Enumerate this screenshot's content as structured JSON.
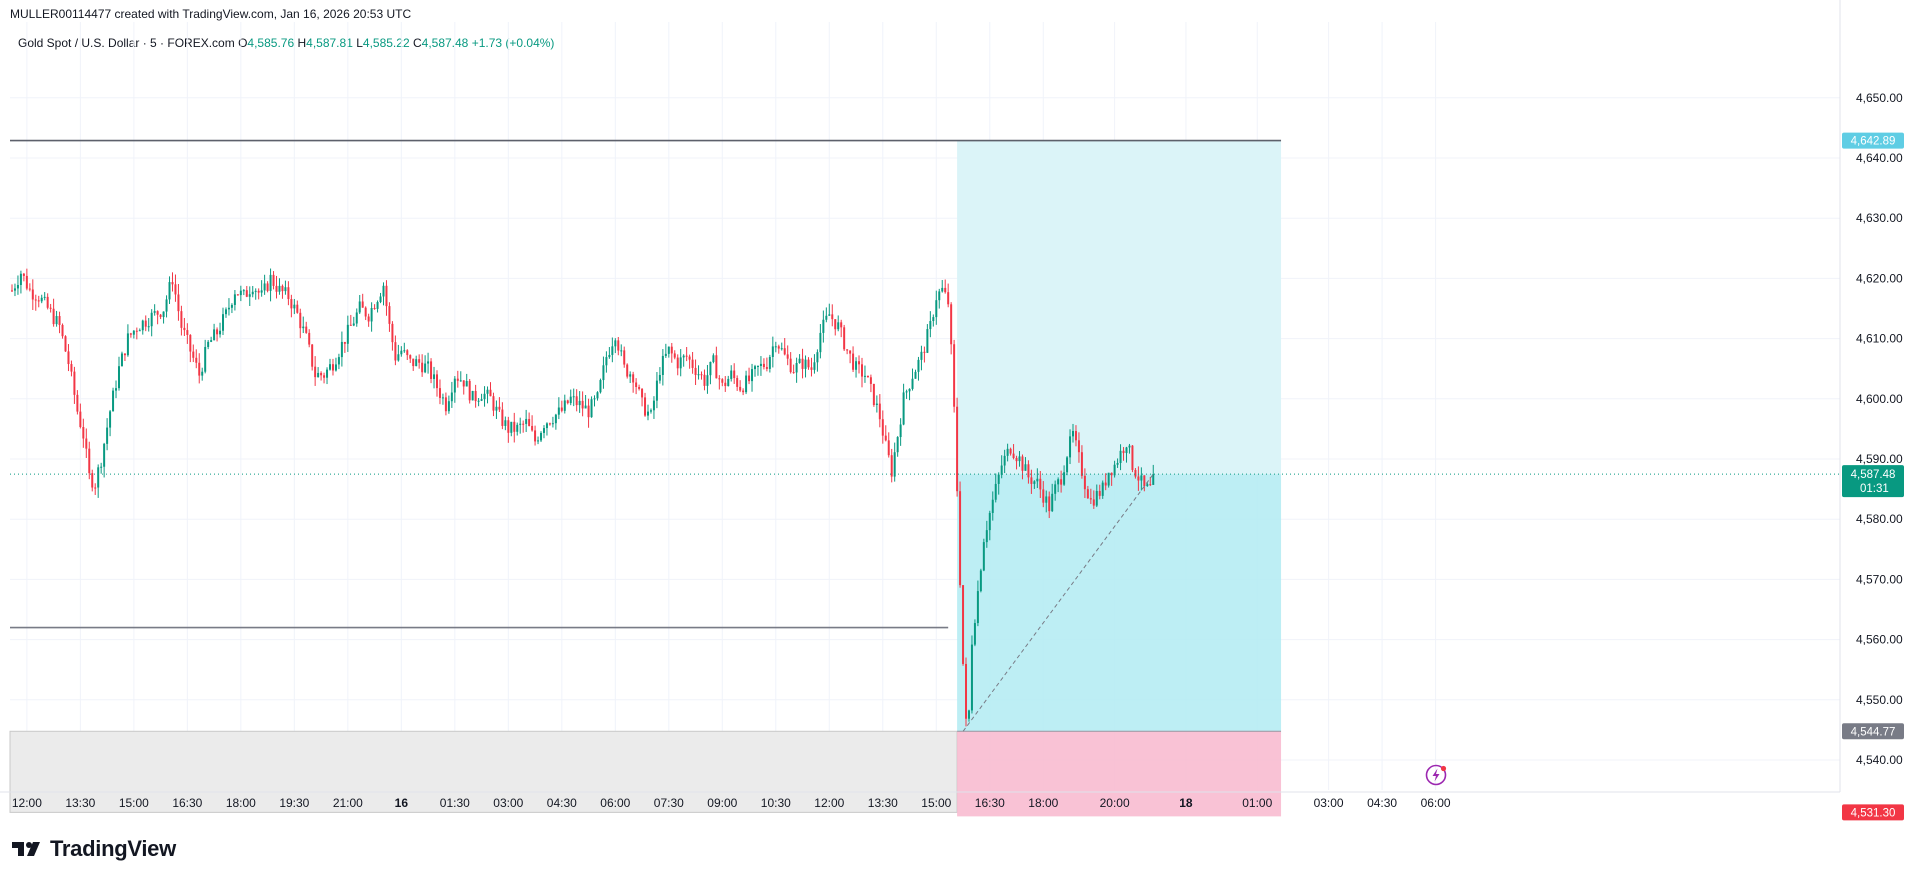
{
  "header": {
    "attribution": "MULLER00114477 created with TradingView.com, Jan 16, 2026 20:53 UTC"
  },
  "legend": {
    "symbol": "Gold Spot / U.S. Dollar · 5 · FOREX.com",
    "o_label": "O",
    "o_value": "4,585.76",
    "h_label": "H",
    "h_value": "4,587.81",
    "l_label": "L",
    "l_value": "4,585.22",
    "c_label": "C",
    "c_value": "4,587.48",
    "change": "+1.73 (+0.04%)"
  },
  "brand": {
    "name": "TradingView",
    "icon": "tradingview-logo-icon"
  },
  "colors": {
    "up": "#089981",
    "down": "#f23645",
    "profit_zone": "#b2ebf2",
    "loss_zone": "#f8bbd0",
    "entry_badge": "#787b86",
    "target_badge": "#5fcde4",
    "stop_badge": "#f23645",
    "last_price_badge": "#089981"
  },
  "chart_data": {
    "type": "candlestick",
    "symbol": "XAUUSD",
    "interval": "5",
    "ylim": [
      4530,
      4652
    ],
    "y_ticks": [
      "4,540.00",
      "4,550.00",
      "4,560.00",
      "4,570.00",
      "4,580.00",
      "4,590.00",
      "4,600.00",
      "4,610.00",
      "4,620.00",
      "4,630.00",
      "4,640.00",
      "4,650.00"
    ],
    "y_tick_values": [
      4540,
      4550,
      4560,
      4570,
      4580,
      4590,
      4600,
      4610,
      4620,
      4630,
      4640,
      4650
    ],
    "x_ticks": [
      {
        "label": "12:00",
        "bar": 5
      },
      {
        "label": "13:30",
        "bar": 23
      },
      {
        "label": "15:00",
        "bar": 41
      },
      {
        "label": "16:30",
        "bar": 59
      },
      {
        "label": "18:00",
        "bar": 77
      },
      {
        "label": "19:30",
        "bar": 95
      },
      {
        "label": "21:00",
        "bar": 113
      },
      {
        "label": "16",
        "bar": 131,
        "bold": true
      },
      {
        "label": "01:30",
        "bar": 149
      },
      {
        "label": "03:00",
        "bar": 167
      },
      {
        "label": "04:30",
        "bar": 185
      },
      {
        "label": "06:00",
        "bar": 203
      },
      {
        "label": "07:30",
        "bar": 221
      },
      {
        "label": "09:00",
        "bar": 239
      },
      {
        "label": "10:30",
        "bar": 257
      },
      {
        "label": "12:00",
        "bar": 275
      },
      {
        "label": "13:30",
        "bar": 293
      },
      {
        "label": "15:00",
        "bar": 311
      },
      {
        "label": "16:30",
        "bar": 329
      },
      {
        "label": "18:00",
        "bar": 347
      },
      {
        "label": "20:00",
        "bar": 371
      },
      {
        "label": "18",
        "bar": 395,
        "bold": true
      },
      {
        "label": "01:00",
        "bar": 419
      },
      {
        "label": "03:00",
        "bar": 443
      },
      {
        "label": "04:30",
        "bar": 461
      },
      {
        "label": "06:00",
        "bar": 479
      }
    ],
    "close_path": [
      [
        0,
        4618
      ],
      [
        3,
        4621
      ],
      [
        6,
        4618
      ],
      [
        9,
        4617
      ],
      [
        12,
        4615
      ],
      [
        16,
        4612
      ],
      [
        19,
        4606
      ],
      [
        22,
        4598
      ],
      [
        24,
        4594
      ],
      [
        26,
        4587
      ],
      [
        28,
        4586
      ],
      [
        30,
        4590
      ],
      [
        33,
        4598
      ],
      [
        36,
        4605
      ],
      [
        39,
        4610
      ],
      [
        42,
        4612
      ],
      [
        45,
        4613
      ],
      [
        48,
        4614
      ],
      [
        51,
        4615
      ],
      [
        54,
        4620
      ],
      [
        57,
        4612
      ],
      [
        60,
        4608
      ],
      [
        63,
        4604
      ],
      [
        66,
        4609
      ],
      [
        69,
        4611
      ],
      [
        72,
        4614
      ],
      [
        75,
        4618
      ],
      [
        78,
        4617
      ],
      [
        81,
        4619
      ],
      [
        84,
        4617
      ],
      [
        87,
        4620
      ],
      [
        90,
        4618
      ],
      [
        93,
        4617
      ],
      [
        96,
        4614
      ],
      [
        99,
        4610
      ],
      [
        102,
        4604
      ],
      [
        105,
        4604
      ],
      [
        108,
        4606
      ],
      [
        111,
        4609
      ],
      [
        114,
        4612
      ],
      [
        117,
        4615
      ],
      [
        120,
        4614
      ],
      [
        123,
        4617
      ],
      [
        125,
        4619
      ],
      [
        127,
        4612
      ],
      [
        129,
        4607
      ],
      [
        131,
        4608
      ],
      [
        134,
        4606
      ],
      [
        137,
        4606
      ],
      [
        140,
        4605
      ],
      [
        143,
        4602
      ],
      [
        146,
        4599
      ],
      [
        149,
        4604
      ],
      [
        152,
        4603
      ],
      [
        155,
        4600
      ],
      [
        158,
        4601
      ],
      [
        161,
        4600
      ],
      [
        164,
        4597
      ],
      [
        167,
        4595
      ],
      [
        170,
        4595
      ],
      [
        173,
        4596
      ],
      [
        176,
        4593
      ],
      [
        179,
        4596
      ],
      [
        182,
        4597
      ],
      [
        185,
        4598
      ],
      [
        188,
        4600
      ],
      [
        191,
        4599
      ],
      [
        194,
        4598
      ],
      [
        197,
        4600
      ],
      [
        200,
        4607
      ],
      [
        203,
        4611
      ],
      [
        206,
        4605
      ],
      [
        209,
        4604
      ],
      [
        212,
        4599
      ],
      [
        215,
        4597
      ],
      [
        218,
        4605
      ],
      [
        221,
        4608
      ],
      [
        224,
        4606
      ],
      [
        227,
        4607
      ],
      [
        230,
        4605
      ],
      [
        233,
        4603
      ],
      [
        236,
        4606
      ],
      [
        239,
        4602
      ],
      [
        242,
        4604
      ],
      [
        245,
        4602
      ],
      [
        248,
        4603
      ],
      [
        251,
        4605
      ],
      [
        254,
        4606
      ],
      [
        257,
        4610
      ],
      [
        260,
        4607
      ],
      [
        263,
        4605
      ],
      [
        266,
        4606
      ],
      [
        269,
        4605
      ],
      [
        272,
        4611
      ],
      [
        275,
        4614
      ],
      [
        278,
        4612
      ],
      [
        281,
        4608
      ],
      [
        284,
        4605
      ],
      [
        287,
        4604
      ],
      [
        290,
        4600
      ],
      [
        292,
        4597
      ],
      [
        294,
        4592
      ],
      [
        296,
        4588
      ],
      [
        298,
        4594
      ],
      [
        300,
        4600
      ],
      [
        303,
        4604
      ],
      [
        306,
        4607
      ],
      [
        309,
        4612
      ],
      [
        311,
        4617
      ],
      [
        313,
        4618
      ],
      [
        315,
        4616
      ],
      [
        316,
        4608
      ],
      [
        317,
        4598
      ],
      [
        318,
        4585
      ],
      [
        319,
        4570
      ],
      [
        320,
        4556
      ],
      [
        321,
        4546
      ],
      [
        322,
        4548
      ],
      [
        323,
        4560
      ],
      [
        325,
        4568
      ],
      [
        327,
        4577
      ],
      [
        330,
        4583
      ],
      [
        333,
        4589
      ],
      [
        336,
        4592
      ],
      [
        339,
        4590
      ],
      [
        342,
        4587
      ],
      [
        345,
        4586
      ],
      [
        347,
        4584
      ],
      [
        349,
        4582
      ],
      [
        351,
        4585
      ],
      [
        353,
        4587
      ],
      [
        355,
        4591
      ],
      [
        357,
        4594
      ],
      [
        359,
        4590
      ],
      [
        361,
        4586
      ],
      [
        363,
        4583
      ],
      [
        365,
        4584
      ],
      [
        367,
        4585
      ],
      [
        369,
        4588
      ],
      [
        371,
        4589
      ],
      [
        373,
        4591
      ],
      [
        375,
        4593
      ],
      [
        377,
        4589
      ],
      [
        379,
        4587
      ],
      [
        381,
        4585
      ],
      [
        383,
        4585
      ],
      [
        384,
        4587.48
      ]
    ],
    "last_price": "4,587.48",
    "countdown": "01:31",
    "position": {
      "type": "long",
      "entry": 4544.77,
      "entry_label": "4,544.77",
      "target": 4642.89,
      "target_label": "4,642.89",
      "stop": 4531.3,
      "stop_label": "4,531.30",
      "start_bar": 318,
      "end_bar": 427
    },
    "h_lines": [
      {
        "price": 4642.89,
        "from_bar": 0,
        "to_bar": 427
      },
      {
        "price": 4562.0,
        "from_bar": 0,
        "to_bar": 315
      }
    ],
    "gray_zone": {
      "top": 4544.77,
      "bottom": 4531.3,
      "from_bar": 0,
      "to_bar": 318
    },
    "grid": true
  }
}
